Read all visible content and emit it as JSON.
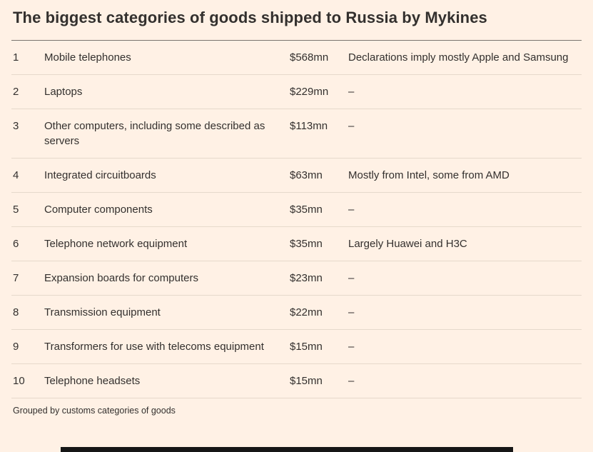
{
  "title": "The biggest categories of goods shipped to Russia by Mykines",
  "footnote": "Grouped by customs categories of goods",
  "colors": {
    "background": "#fff1e5",
    "text": "#33302e",
    "rule_dark": "#7a756f",
    "rule_light": "#e6d9cb"
  },
  "chart_data": {
    "type": "table",
    "title": "The biggest categories of goods shipped to Russia by Mykines",
    "columns": [
      "rank",
      "category",
      "value",
      "note"
    ],
    "rows": [
      {
        "rank": "1",
        "category": "Mobile telephones",
        "value": "$568mn",
        "note": "Declarations imply mostly Apple and Samsung"
      },
      {
        "rank": "2",
        "category": "Laptops",
        "value": "$229mn",
        "note": "–"
      },
      {
        "rank": "3",
        "category": "Other computers, including some described as servers",
        "value": "$113mn",
        "note": "–"
      },
      {
        "rank": "4",
        "category": "Integrated circuitboards",
        "value": "$63mn",
        "note": "Mostly from Intel, some from AMD"
      },
      {
        "rank": "5",
        "category": "Computer components",
        "value": "$35mn",
        "note": "–"
      },
      {
        "rank": "6",
        "category": "Telephone network equipment",
        "value": "$35mn",
        "note": "Largely Huawei and H3C"
      },
      {
        "rank": "7",
        "category": "Expansion boards for computers",
        "value": "$23mn",
        "note": "–"
      },
      {
        "rank": "8",
        "category": "Transmission equipment",
        "value": "$22mn",
        "note": "–"
      },
      {
        "rank": "9",
        "category": "Transformers for use with telecoms equipment",
        "value": "$15mn",
        "note": "–"
      },
      {
        "rank": "10",
        "category": "Telephone headsets",
        "value": "$15mn",
        "note": "–"
      }
    ],
    "footnote": "Grouped by customs categories of goods"
  }
}
